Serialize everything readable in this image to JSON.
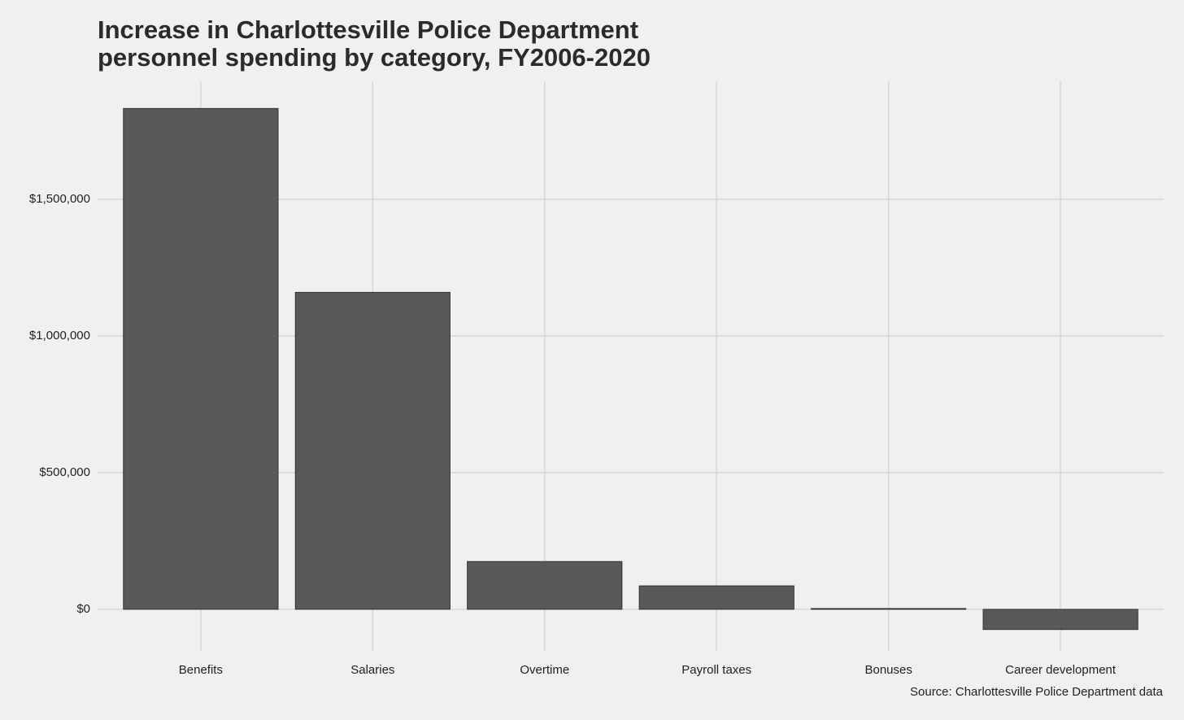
{
  "chart_data": {
    "type": "bar",
    "title": [
      "Increase in Charlottesville Police Department",
      "personnel spending by category, FY2006-2020"
    ],
    "caption": "Source: Charlottesville Police Department data",
    "categories": [
      "Benefits",
      "Salaries",
      "Overtime",
      "Payroll taxes",
      "Bonuses",
      "Career development"
    ],
    "values": [
      1833000,
      1160000,
      175000,
      86000,
      3000,
      -74000
    ],
    "color": "#595959",
    "ylim": [
      -152000,
      1932000
    ],
    "yticks": [
      {
        "value": 0,
        "label": "$0"
      },
      {
        "value": 500000,
        "label": "$500,000"
      },
      {
        "value": 1000000,
        "label": "$1,000,000"
      },
      {
        "value": 1500000,
        "label": "$1,500,000"
      }
    ],
    "grid": true
  }
}
